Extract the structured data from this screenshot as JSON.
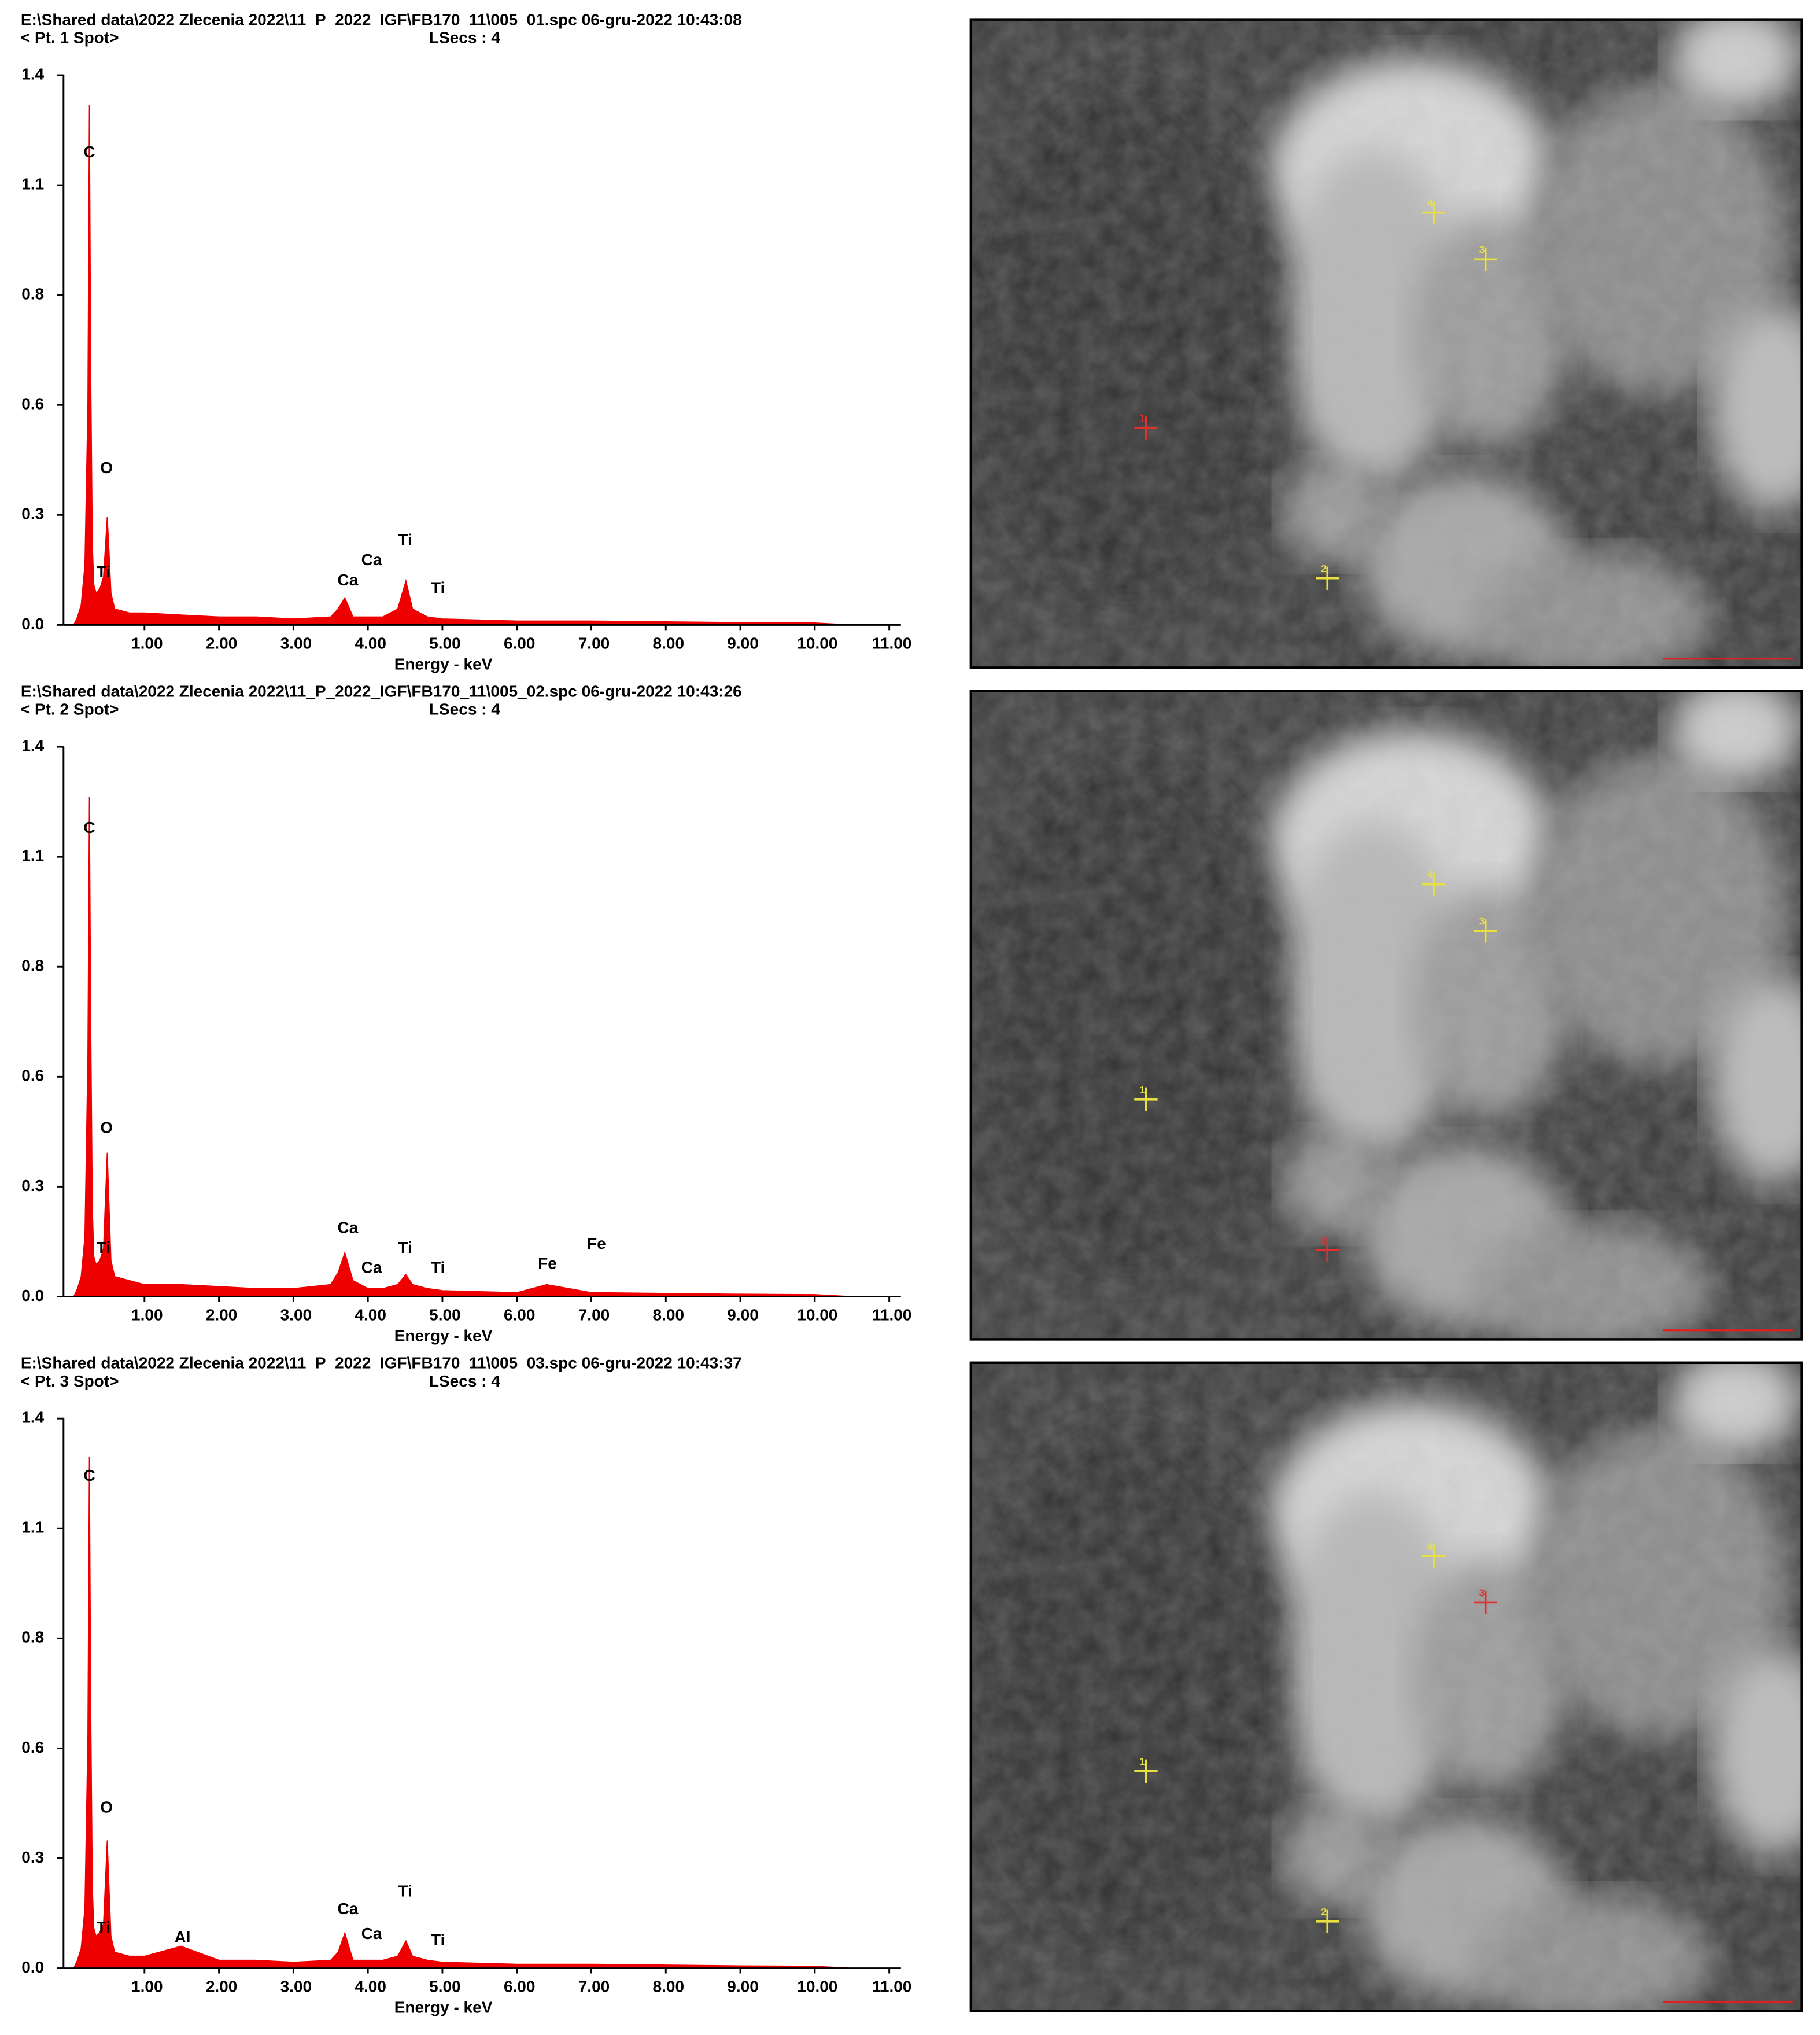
{
  "chart_data": [
    {
      "type": "area",
      "title": "E:\\Shared data\\2022 Zlecenia 2022\\11_P_2022_IGF\\FB170_11\\005_01.spc  06-gru-2022 10:43:08",
      "subtitle": "< Pt.  1 Spot>",
      "lsecs_label": "LSecs :  4",
      "x_label": "Energy - keV",
      "color": "#ee0000",
      "xlim": [
        0,
        11
      ],
      "xticks": [
        {
          "value": 1,
          "label": "1.00"
        },
        {
          "value": 2,
          "label": "2.00"
        },
        {
          "value": 3,
          "label": "3.00"
        },
        {
          "value": 4,
          "label": "4.00"
        },
        {
          "value": 5,
          "label": "5.00"
        },
        {
          "value": 6,
          "label": "6.00"
        },
        {
          "value": 7,
          "label": "7.00"
        },
        {
          "value": 8,
          "label": "8.00"
        },
        {
          "value": 9,
          "label": "9.00"
        },
        {
          "value": 10,
          "label": "10.00"
        },
        {
          "value": 11,
          "label": "11.00"
        }
      ],
      "ylim": [
        0,
        1.375
      ],
      "yticks": [
        {
          "value": 0,
          "label": "0.0"
        },
        {
          "value": 0.275,
          "label": "0.3"
        },
        {
          "value": 0.55,
          "label": "0.6"
        },
        {
          "value": 0.825,
          "label": "0.8"
        },
        {
          "value": 1.1,
          "label": "1.1"
        },
        {
          "value": 1.375,
          "label": "1.4"
        }
      ],
      "x": [
        0.05,
        0.1,
        0.15,
        0.2,
        0.24,
        0.26,
        0.28,
        0.3,
        0.32,
        0.35,
        0.4,
        0.45,
        0.5,
        0.52,
        0.55,
        0.6,
        0.8,
        1.0,
        1.49,
        2.0,
        2.5,
        3.0,
        3.5,
        3.6,
        3.69,
        3.8,
        4.0,
        4.2,
        4.4,
        4.51,
        4.6,
        4.8,
        5.0,
        6.0,
        6.4,
        7.0,
        8.0,
        9.0,
        10.0,
        10.5
      ],
      "values": [
        0,
        0.02,
        0.05,
        0.15,
        0.55,
        1.3,
        0.6,
        0.2,
        0.1,
        0.08,
        0.09,
        0.12,
        0.27,
        0.2,
        0.08,
        0.04,
        0.03,
        0.03,
        0.025,
        0.02,
        0.02,
        0.015,
        0.02,
        0.04,
        0.068,
        0.02,
        0.02,
        0.02,
        0.04,
        0.11,
        0.04,
        0.02,
        0.015,
        0.01,
        0.01,
        0.01,
        0.008,
        0.006,
        0.005,
        0
      ],
      "annotations": [
        {
          "text": "C",
          "x": 0.26,
          "y": 1.18
        },
        {
          "text": "O",
          "x": 0.49,
          "y": 0.39
        },
        {
          "text": "Ti",
          "x": 0.45,
          "y": 0.13
        },
        {
          "text": "Ca",
          "x": 3.73,
          "y": 0.11
        },
        {
          "text": "Ca",
          "x": 4.05,
          "y": 0.16
        },
        {
          "text": "Ti",
          "x": 4.5,
          "y": 0.21
        },
        {
          "text": "Ti",
          "x": 4.94,
          "y": 0.09
        }
      ]
    },
    {
      "type": "area",
      "title": "E:\\Shared data\\2022 Zlecenia 2022\\11_P_2022_IGF\\FB170_11\\005_02.spc  06-gru-2022 10:43:26",
      "subtitle": "< Pt.  2 Spot>",
      "lsecs_label": "LSecs :  4",
      "x_label": "Energy - keV",
      "color": "#ee0000",
      "xlim": [
        0,
        11
      ],
      "xticks": [
        {
          "value": 1,
          "label": "1.00"
        },
        {
          "value": 2,
          "label": "2.00"
        },
        {
          "value": 3,
          "label": "3.00"
        },
        {
          "value": 4,
          "label": "4.00"
        },
        {
          "value": 5,
          "label": "5.00"
        },
        {
          "value": 6,
          "label": "6.00"
        },
        {
          "value": 7,
          "label": "7.00"
        },
        {
          "value": 8,
          "label": "8.00"
        },
        {
          "value": 9,
          "label": "9.00"
        },
        {
          "value": 10,
          "label": "10.00"
        },
        {
          "value": 11,
          "label": "11.00"
        }
      ],
      "ylim": [
        0,
        1.375
      ],
      "yticks": [
        {
          "value": 0,
          "label": "0.0"
        },
        {
          "value": 0.275,
          "label": "0.3"
        },
        {
          "value": 0.55,
          "label": "0.6"
        },
        {
          "value": 0.825,
          "label": "0.8"
        },
        {
          "value": 1.1,
          "label": "1.1"
        },
        {
          "value": 1.375,
          "label": "1.4"
        }
      ],
      "x": [
        0.05,
        0.1,
        0.15,
        0.2,
        0.24,
        0.26,
        0.28,
        0.3,
        0.32,
        0.35,
        0.4,
        0.45,
        0.5,
        0.52,
        0.55,
        0.6,
        0.8,
        1.0,
        1.49,
        2.0,
        2.5,
        3.0,
        3.5,
        3.6,
        3.69,
        3.8,
        4.0,
        4.2,
        4.4,
        4.51,
        4.6,
        4.8,
        5.0,
        6.0,
        6.4,
        7.0,
        8.0,
        9.0,
        10.0,
        10.5
      ],
      "values": [
        0,
        0.02,
        0.05,
        0.15,
        0.6,
        1.25,
        0.65,
        0.22,
        0.1,
        0.08,
        0.09,
        0.12,
        0.36,
        0.25,
        0.09,
        0.05,
        0.04,
        0.03,
        0.03,
        0.025,
        0.02,
        0.02,
        0.03,
        0.06,
        0.11,
        0.04,
        0.02,
        0.02,
        0.03,
        0.055,
        0.03,
        0.02,
        0.015,
        0.01,
        0.03,
        0.01,
        0.008,
        0.006,
        0.005,
        0
      ],
      "annotations": [
        {
          "text": "C",
          "x": 0.26,
          "y": 1.17
        },
        {
          "text": "O",
          "x": 0.49,
          "y": 0.42
        },
        {
          "text": "Ti",
          "x": 0.45,
          "y": 0.12
        },
        {
          "text": "Ca",
          "x": 3.73,
          "y": 0.17
        },
        {
          "text": "Ca",
          "x": 4.05,
          "y": 0.07
        },
        {
          "text": "Ti",
          "x": 4.5,
          "y": 0.12
        },
        {
          "text": "Ti",
          "x": 4.94,
          "y": 0.07
        },
        {
          "text": "Fe",
          "x": 6.41,
          "y": 0.08
        },
        {
          "text": "Fe",
          "x": 7.07,
          "y": 0.13
        }
      ]
    },
    {
      "type": "area",
      "title": "E:\\Shared data\\2022 Zlecenia 2022\\11_P_2022_IGF\\FB170_11\\005_03.spc  06-gru-2022 10:43:37",
      "subtitle": "< Pt.  3 Spot>",
      "lsecs_label": "LSecs :  4",
      "x_label": "Energy - keV",
      "color": "#ee0000",
      "xlim": [
        0,
        11
      ],
      "xticks": [
        {
          "value": 1,
          "label": "1.00"
        },
        {
          "value": 2,
          "label": "2.00"
        },
        {
          "value": 3,
          "label": "3.00"
        },
        {
          "value": 4,
          "label": "4.00"
        },
        {
          "value": 5,
          "label": "5.00"
        },
        {
          "value": 6,
          "label": "6.00"
        },
        {
          "value": 7,
          "label": "7.00"
        },
        {
          "value": 8,
          "label": "8.00"
        },
        {
          "value": 9,
          "label": "9.00"
        },
        {
          "value": 10,
          "label": "10.00"
        },
        {
          "value": 11,
          "label": "11.00"
        }
      ],
      "ylim": [
        0,
        1.375
      ],
      "yticks": [
        {
          "value": 0,
          "label": "0.0"
        },
        {
          "value": 0.275,
          "label": "0.3"
        },
        {
          "value": 0.55,
          "label": "0.6"
        },
        {
          "value": 0.825,
          "label": "0.8"
        },
        {
          "value": 1.1,
          "label": "1.1"
        },
        {
          "value": 1.375,
          "label": "1.4"
        }
      ],
      "x": [
        0.05,
        0.1,
        0.15,
        0.2,
        0.24,
        0.26,
        0.28,
        0.3,
        0.32,
        0.35,
        0.4,
        0.45,
        0.5,
        0.52,
        0.55,
        0.6,
        0.8,
        1.0,
        1.49,
        2.0,
        2.5,
        3.0,
        3.5,
        3.6,
        3.69,
        3.8,
        4.0,
        4.2,
        4.4,
        4.51,
        4.6,
        4.8,
        5.0,
        6.0,
        6.4,
        7.0,
        8.0,
        9.0,
        10.0,
        10.5
      ],
      "values": [
        0,
        0.02,
        0.05,
        0.15,
        0.58,
        1.28,
        0.62,
        0.2,
        0.1,
        0.08,
        0.09,
        0.11,
        0.32,
        0.22,
        0.08,
        0.04,
        0.03,
        0.03,
        0.055,
        0.02,
        0.02,
        0.015,
        0.02,
        0.04,
        0.088,
        0.02,
        0.02,
        0.02,
        0.03,
        0.068,
        0.03,
        0.02,
        0.015,
        0.01,
        0.01,
        0.01,
        0.008,
        0.006,
        0.005,
        0
      ],
      "annotations": [
        {
          "text": "C",
          "x": 0.26,
          "y": 1.23
        },
        {
          "text": "O",
          "x": 0.49,
          "y": 0.4
        },
        {
          "text": "Ti",
          "x": 0.45,
          "y": 0.1
        },
        {
          "text": "Al",
          "x": 1.51,
          "y": 0.075
        },
        {
          "text": "Ca",
          "x": 3.73,
          "y": 0.146
        },
        {
          "text": "Ca",
          "x": 4.05,
          "y": 0.084
        },
        {
          "text": "Ti",
          "x": 4.5,
          "y": 0.19
        },
        {
          "text": "Ti",
          "x": 4.94,
          "y": 0.068
        }
      ]
    }
  ],
  "images": [
    {
      "markers": [
        {
          "label": "4",
          "color": "#e8e040"
        },
        {
          "label": "3",
          "color": "#e8e040"
        },
        {
          "label": "1",
          "color": "#e03030"
        },
        {
          "label": "2",
          "color": "#e8e040"
        }
      ]
    },
    {
      "markers": [
        {
          "label": "4",
          "color": "#e8e040"
        },
        {
          "label": "3",
          "color": "#e8e040"
        },
        {
          "label": "1",
          "color": "#e8e040"
        },
        {
          "label": "2",
          "color": "#e03030"
        }
      ]
    },
    {
      "markers": [
        {
          "label": "4",
          "color": "#e8e040"
        },
        {
          "label": "3",
          "color": "#e03030"
        },
        {
          "label": "1",
          "color": "#e8e040"
        },
        {
          "label": "2",
          "color": "#e8e040"
        }
      ]
    }
  ]
}
